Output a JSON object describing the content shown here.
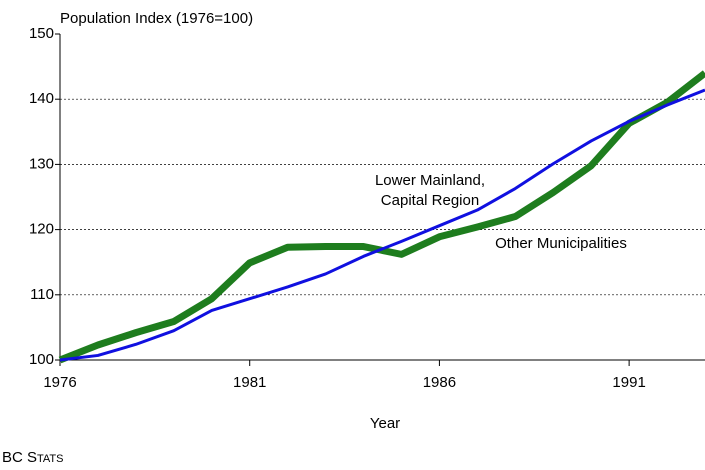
{
  "chart_data": {
    "type": "line",
    "y_axis_title": "Population Index (1976=100)",
    "x_axis_title": "Year",
    "footer": "BC Stats",
    "x": [
      1976,
      1977,
      1978,
      1979,
      1980,
      1981,
      1982,
      1983,
      1984,
      1985,
      1986,
      1987,
      1988,
      1989,
      1990,
      1991,
      1992,
      1993
    ],
    "series": [
      {
        "name": "Other Municipalities",
        "color": "#1e7d1e",
        "values": [
          100,
          102.3,
          104.2,
          105.9,
          109.4,
          114.9,
          117.3,
          117.4,
          117.4,
          116.2,
          118.9,
          120.4,
          122,
          125.7,
          129.8,
          136.3,
          139.5,
          144
        ]
      },
      {
        "name_lines": [
          "Lower Mainland,",
          "Capital Region"
        ],
        "color": "#1010e0",
        "values": [
          100,
          100.7,
          102.4,
          104.5,
          107.6,
          109.4,
          111.2,
          113.2,
          115.9,
          118.2,
          120.6,
          123,
          126.3,
          130.1,
          133.6,
          136.6,
          139.1,
          141.4
        ]
      }
    ],
    "xlim": [
      1976,
      1993
    ],
    "xticks": [
      1976,
      1981,
      1986,
      1991
    ],
    "ylim": [
      100,
      150
    ],
    "yticks": [
      100,
      110,
      120,
      130,
      140,
      150
    ],
    "grid": true
  }
}
